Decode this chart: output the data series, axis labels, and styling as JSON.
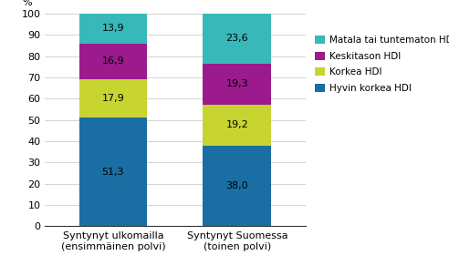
{
  "categories": [
    "Syntynyt ulkomailla\n(ensimmäinen polvi)",
    "Syntynyt Suomessa\n(toinen polvi)"
  ],
  "series": [
    {
      "label": "Hyvin korkea HDI",
      "values": [
        51.3,
        38.0
      ],
      "color": "#1a6ea3"
    },
    {
      "label": "Korkea HDI",
      "values": [
        17.9,
        19.2
      ],
      "color": "#c8d42f"
    },
    {
      "label": "Keskitason HDI",
      "values": [
        16.9,
        19.3
      ],
      "color": "#9b1a8c"
    },
    {
      "label": "Matala tai tuntematon HDI",
      "values": [
        13.9,
        23.6
      ],
      "color": "#38b8b8"
    }
  ],
  "ylabel": "%",
  "ylim": [
    0,
    100
  ],
  "yticks": [
    0,
    10,
    20,
    30,
    40,
    50,
    60,
    70,
    80,
    90,
    100
  ],
  "bar_width": 0.55,
  "label_fontsize": 8.0,
  "tick_fontsize": 8.0,
  "legend_fontsize": 7.5,
  "background_color": "#ffffff"
}
